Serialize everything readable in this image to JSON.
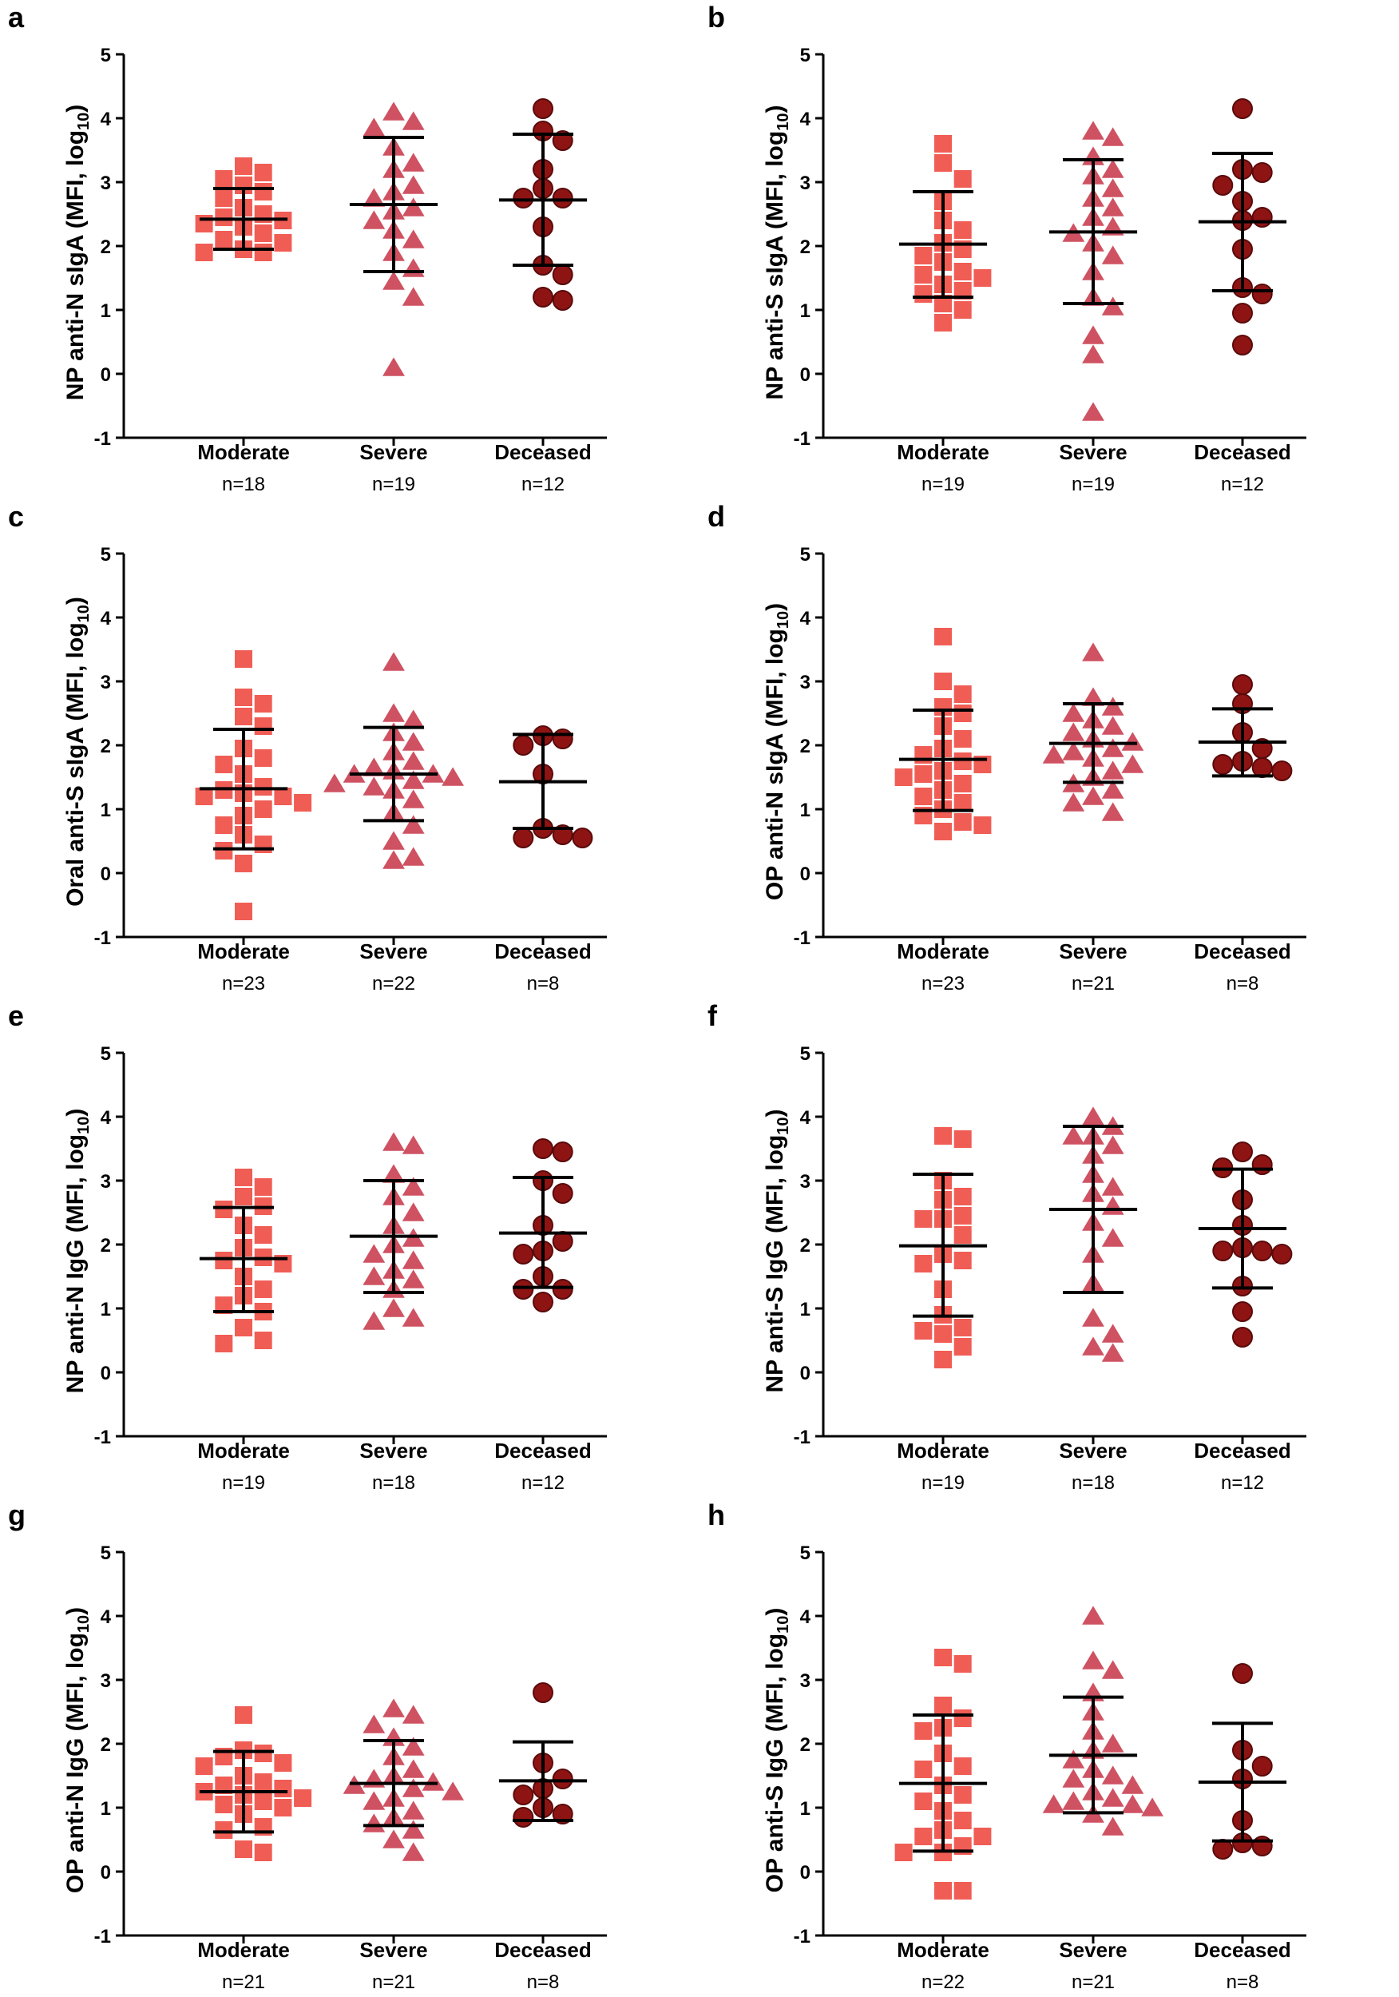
{
  "colors": {
    "Moderate": "#f05d55",
    "Severe": "#cf5262",
    "Deceased": "#8e1414",
    "DeceasedEdge": "#5a0a0a",
    "axis": "#000000"
  },
  "chart_data": [
    {
      "type": "scatter",
      "panel": "a",
      "ylabel": "NP anti-N sIgA (MFI, log",
      "ylabel_sub": "10",
      "ylabel_end": ")",
      "ylim": [
        -1,
        5
      ],
      "yticks": [
        -1,
        0,
        1,
        2,
        3,
        4,
        5
      ],
      "categories": [
        "Moderate",
        "Severe",
        "Deceased"
      ],
      "markers": [
        "square",
        "triangle",
        "circle"
      ],
      "n_labels": [
        "n=18",
        "n=19",
        "n=12"
      ],
      "groups": [
        {
          "name": "Moderate",
          "mean": 2.42,
          "sd_low": 1.95,
          "sd_high": 2.9,
          "points": [
            3.25,
            3.15,
            3.05,
            2.95,
            2.85,
            2.75,
            2.6,
            2.5,
            2.45,
            2.4,
            2.35,
            2.3,
            2.2,
            2.1,
            2.05,
            1.95,
            1.9,
            1.9
          ]
        },
        {
          "name": "Severe",
          "mean": 2.65,
          "sd_low": 1.6,
          "sd_high": 3.7,
          "points": [
            4.1,
            3.95,
            3.85,
            3.55,
            3.3,
            3.2,
            2.95,
            2.85,
            2.75,
            2.6,
            2.55,
            2.4,
            2.25,
            2.1,
            1.9,
            1.65,
            1.45,
            1.2,
            0.1
          ]
        },
        {
          "name": "Deceased",
          "mean": 2.72,
          "sd_low": 1.7,
          "sd_high": 3.75,
          "points": [
            4.15,
            3.8,
            3.65,
            3.2,
            2.9,
            2.75,
            2.75,
            2.3,
            1.7,
            1.55,
            1.2,
            1.15
          ]
        }
      ]
    },
    {
      "type": "scatter",
      "panel": "b",
      "ylabel": "NP anti-S sIgA (MFI, log",
      "ylabel_sub": "10",
      "ylabel_end": ")",
      "ylim": [
        -1,
        5
      ],
      "yticks": [
        -1,
        0,
        1,
        2,
        3,
        4,
        5
      ],
      "categories": [
        "Moderate",
        "Severe",
        "Deceased"
      ],
      "markers": [
        "square",
        "triangle",
        "circle"
      ],
      "n_labels": [
        "n=19",
        "n=19",
        "n=12"
      ],
      "groups": [
        {
          "name": "Moderate",
          "mean": 2.03,
          "sd_low": 1.2,
          "sd_high": 2.85,
          "points": [
            3.6,
            3.3,
            3.05,
            2.7,
            2.4,
            2.25,
            2.05,
            1.95,
            1.85,
            1.75,
            1.6,
            1.55,
            1.5,
            1.4,
            1.3,
            1.25,
            1.1,
            1.0,
            0.8
          ]
        },
        {
          "name": "Severe",
          "mean": 2.22,
          "sd_low": 1.1,
          "sd_high": 3.35,
          "points": [
            3.8,
            3.7,
            3.4,
            3.2,
            3.1,
            2.9,
            2.75,
            2.6,
            2.45,
            2.3,
            2.2,
            2.05,
            1.85,
            1.6,
            1.2,
            1.05,
            0.6,
            0.3,
            -0.6
          ]
        },
        {
          "name": "Deceased",
          "mean": 2.38,
          "sd_low": 1.3,
          "sd_high": 3.45,
          "points": [
            4.15,
            3.2,
            3.15,
            2.95,
            2.7,
            2.45,
            2.4,
            1.95,
            1.35,
            1.25,
            0.95,
            0.45
          ]
        }
      ]
    },
    {
      "type": "scatter",
      "panel": "c",
      "ylabel": "Oral anti-S sIgA (MFI, log",
      "ylabel_sub": "10",
      "ylabel_end": ")",
      "ylim": [
        -1,
        5
      ],
      "yticks": [
        -1,
        0,
        1,
        2,
        3,
        4,
        5
      ],
      "categories": [
        "Moderate",
        "Severe",
        "Deceased"
      ],
      "markers": [
        "square",
        "triangle",
        "circle"
      ],
      "n_labels": [
        "n=23",
        "n=22",
        "n=8"
      ],
      "groups": [
        {
          "name": "Moderate",
          "mean": 1.32,
          "sd_low": 0.38,
          "sd_high": 2.25,
          "points": [
            3.35,
            2.75,
            2.65,
            2.45,
            2.3,
            1.95,
            1.8,
            1.7,
            1.55,
            1.35,
            1.3,
            1.25,
            1.2,
            1.2,
            1.1,
            1.0,
            0.9,
            0.75,
            0.6,
            0.45,
            0.35,
            0.15,
            -0.6
          ]
        },
        {
          "name": "Severe",
          "mean": 1.55,
          "sd_low": 0.82,
          "sd_high": 2.28,
          "points": [
            3.3,
            2.5,
            2.4,
            2.2,
            2.05,
            1.9,
            1.75,
            1.65,
            1.6,
            1.55,
            1.55,
            1.5,
            1.45,
            1.4,
            1.35,
            1.3,
            1.15,
            0.95,
            0.75,
            0.5,
            0.25,
            0.2
          ]
        },
        {
          "name": "Deceased",
          "mean": 1.43,
          "sd_low": 0.7,
          "sd_high": 2.17,
          "points": [
            2.15,
            2.1,
            2.0,
            1.55,
            0.7,
            0.6,
            0.55,
            0.55
          ]
        }
      ]
    },
    {
      "type": "scatter",
      "panel": "d",
      "ylabel": "OP anti-N sIgA (MFI, log",
      "ylabel_sub": "10",
      "ylabel_end": ")",
      "ylim": [
        -1,
        5
      ],
      "yticks": [
        -1,
        0,
        1,
        2,
        3,
        4,
        5
      ],
      "categories": [
        "Moderate",
        "Severe",
        "Deceased"
      ],
      "markers": [
        "square",
        "triangle",
        "circle"
      ],
      "n_labels": [
        "n=23",
        "n=21",
        "n=8"
      ],
      "groups": [
        {
          "name": "Moderate",
          "mean": 1.78,
          "sd_low": 0.98,
          "sd_high": 2.55,
          "points": [
            3.7,
            3.0,
            2.8,
            2.6,
            2.5,
            2.3,
            2.1,
            1.95,
            1.85,
            1.75,
            1.7,
            1.6,
            1.55,
            1.5,
            1.4,
            1.3,
            1.2,
            1.1,
            1.0,
            0.9,
            0.8,
            0.75,
            0.65
          ]
        },
        {
          "name": "Severe",
          "mean": 2.03,
          "sd_low": 1.42,
          "sd_high": 2.65,
          "points": [
            3.45,
            2.75,
            2.6,
            2.5,
            2.4,
            2.3,
            2.2,
            2.1,
            2.05,
            1.95,
            1.9,
            1.85,
            1.8,
            1.7,
            1.6,
            1.5,
            1.4,
            1.3,
            1.2,
            1.1,
            0.95
          ]
        },
        {
          "name": "Deceased",
          "mean": 2.05,
          "sd_low": 1.52,
          "sd_high": 2.57,
          "points": [
            2.95,
            2.65,
            2.2,
            1.95,
            1.75,
            1.7,
            1.65,
            1.6
          ]
        }
      ]
    },
    {
      "type": "scatter",
      "panel": "e",
      "ylabel": "NP anti-N IgG (MFI, log",
      "ylabel_sub": "10",
      "ylabel_end": ")",
      "ylim": [
        -1,
        5
      ],
      "yticks": [
        -1,
        0,
        1,
        2,
        3,
        4,
        5
      ],
      "categories": [
        "Moderate",
        "Severe",
        "Deceased"
      ],
      "markers": [
        "square",
        "triangle",
        "circle"
      ],
      "n_labels": [
        "n=19",
        "n=18",
        "n=12"
      ],
      "groups": [
        {
          "name": "Moderate",
          "mean": 1.78,
          "sd_low": 0.95,
          "sd_high": 2.58,
          "points": [
            3.05,
            2.9,
            2.75,
            2.6,
            2.55,
            2.3,
            2.15,
            1.95,
            1.8,
            1.75,
            1.7,
            1.5,
            1.3,
            1.2,
            1.05,
            0.95,
            0.7,
            0.5,
            0.45
          ]
        },
        {
          "name": "Severe",
          "mean": 2.13,
          "sd_low": 1.25,
          "sd_high": 3.0,
          "points": [
            3.6,
            3.55,
            3.1,
            2.9,
            2.75,
            2.5,
            2.3,
            2.1,
            2.0,
            1.85,
            1.75,
            1.6,
            1.5,
            1.45,
            1.3,
            1.0,
            0.85,
            0.8
          ]
        },
        {
          "name": "Deceased",
          "mean": 2.18,
          "sd_low": 1.33,
          "sd_high": 3.05,
          "points": [
            3.5,
            3.45,
            3.0,
            2.8,
            2.3,
            2.05,
            1.9,
            1.85,
            1.5,
            1.3,
            1.3,
            1.1
          ]
        }
      ]
    },
    {
      "type": "scatter",
      "panel": "f",
      "ylabel": "NP anti-S IgG (MFI, log",
      "ylabel_sub": "10",
      "ylabel_end": ")",
      "ylim": [
        -1,
        5
      ],
      "yticks": [
        -1,
        0,
        1,
        2,
        3,
        4,
        5
      ],
      "categories": [
        "Moderate",
        "Severe",
        "Deceased"
      ],
      "markers": [
        "square",
        "triangle",
        "circle"
      ],
      "n_labels": [
        "n=19",
        "n=18",
        "n=12"
      ],
      "groups": [
        {
          "name": "Moderate",
          "mean": 1.98,
          "sd_low": 0.88,
          "sd_high": 3.1,
          "points": [
            3.7,
            3.65,
            3.0,
            2.75,
            2.7,
            2.45,
            2.4,
            2.4,
            2.15,
            1.85,
            1.75,
            1.7,
            1.3,
            0.9,
            0.7,
            0.65,
            0.6,
            0.4,
            0.2
          ]
        },
        {
          "name": "Severe",
          "mean": 2.55,
          "sd_low": 1.25,
          "sd_high": 3.85,
          "points": [
            4.0,
            3.85,
            3.7,
            3.7,
            3.55,
            3.4,
            3.1,
            2.9,
            2.8,
            2.6,
            2.35,
            2.1,
            1.85,
            1.4,
            0.85,
            0.6,
            0.4,
            0.3
          ]
        },
        {
          "name": "Deceased",
          "mean": 2.25,
          "sd_low": 1.32,
          "sd_high": 3.18,
          "points": [
            3.45,
            3.25,
            3.2,
            2.7,
            2.3,
            1.95,
            1.9,
            1.9,
            1.85,
            1.35,
            0.95,
            0.55
          ]
        }
      ]
    },
    {
      "type": "scatter",
      "panel": "g",
      "ylabel": "OP anti-N IgG (MFI, log",
      "ylabel_sub": "10",
      "ylabel_end": ")",
      "ylim": [
        -1,
        5
      ],
      "yticks": [
        -1,
        0,
        1,
        2,
        3,
        4,
        5
      ],
      "categories": [
        "Moderate",
        "Severe",
        "Deceased"
      ],
      "markers": [
        "square",
        "triangle",
        "circle"
      ],
      "n_labels": [
        "n=21",
        "n=21",
        "n=8"
      ],
      "groups": [
        {
          "name": "Moderate",
          "mean": 1.25,
          "sd_low": 0.62,
          "sd_high": 1.88,
          "points": [
            2.45,
            1.9,
            1.85,
            1.8,
            1.7,
            1.65,
            1.5,
            1.4,
            1.35,
            1.3,
            1.25,
            1.2,
            1.15,
            1.1,
            1.05,
            1.0,
            0.9,
            0.7,
            0.65,
            0.35,
            0.3
          ]
        },
        {
          "name": "Severe",
          "mean": 1.38,
          "sd_low": 0.72,
          "sd_high": 2.05,
          "points": [
            2.55,
            2.45,
            2.3,
            2.1,
            1.95,
            1.8,
            1.6,
            1.5,
            1.45,
            1.4,
            1.35,
            1.3,
            1.25,
            1.15,
            1.1,
            0.95,
            0.85,
            0.75,
            0.65,
            0.5,
            0.3
          ]
        },
        {
          "name": "Deceased",
          "mean": 1.42,
          "sd_low": 0.8,
          "sd_high": 2.03,
          "points": [
            2.8,
            1.7,
            1.45,
            1.3,
            1.2,
            1.0,
            0.9,
            0.85
          ]
        }
      ]
    },
    {
      "type": "scatter",
      "panel": "h",
      "ylabel": "OP anti-S IgG (MFI, log",
      "ylabel_sub": "10",
      "ylabel_end": ")",
      "ylim": [
        -1,
        5
      ],
      "yticks": [
        -1,
        0,
        1,
        2,
        3,
        4,
        5
      ],
      "categories": [
        "Moderate",
        "Severe",
        "Deceased"
      ],
      "markers": [
        "square",
        "triangle",
        "circle"
      ],
      "n_labels": [
        "n=22",
        "n=21",
        "n=8"
      ],
      "groups": [
        {
          "name": "Moderate",
          "mean": 1.38,
          "sd_low": 0.32,
          "sd_high": 2.45,
          "points": [
            3.35,
            3.25,
            2.6,
            2.4,
            2.25,
            2.2,
            1.85,
            1.65,
            1.6,
            1.35,
            1.2,
            1.1,
            0.95,
            0.8,
            0.65,
            0.55,
            0.55,
            0.4,
            0.3,
            0.3,
            -0.3,
            -0.3
          ]
        },
        {
          "name": "Severe",
          "mean": 1.82,
          "sd_low": 0.92,
          "sd_high": 2.73,
          "points": [
            4.0,
            3.3,
            3.15,
            2.8,
            2.5,
            2.2,
            2.0,
            1.9,
            1.75,
            1.6,
            1.5,
            1.45,
            1.35,
            1.25,
            1.15,
            1.1,
            1.05,
            1.05,
            1.0,
            0.9,
            0.7
          ]
        },
        {
          "name": "Deceased",
          "mean": 1.4,
          "sd_low": 0.48,
          "sd_high": 2.32,
          "points": [
            3.1,
            1.9,
            1.65,
            1.45,
            0.8,
            0.45,
            0.4,
            0.35
          ]
        }
      ]
    }
  ]
}
